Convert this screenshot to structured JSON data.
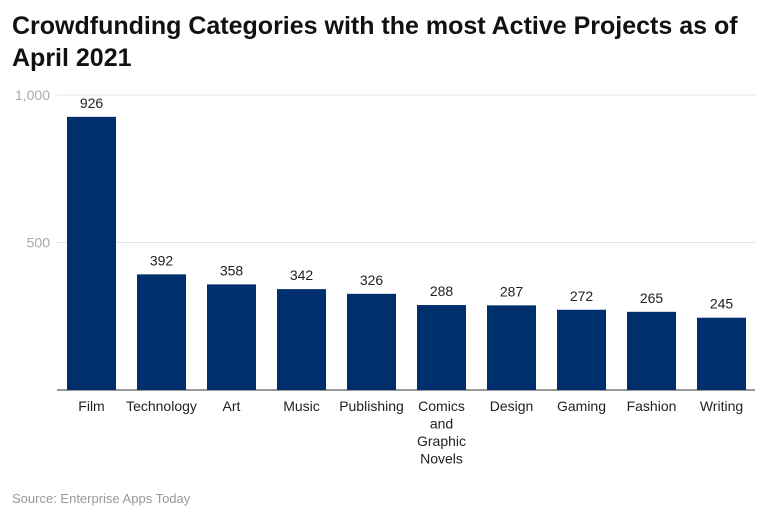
{
  "chart_data": {
    "type": "bar",
    "title": "Crowdfunding Categories with the most Active Projects as of April 2021",
    "categories": [
      "Film",
      "Technology",
      "Art",
      "Music",
      "Publishing",
      "Comics and Graphic Novels",
      "Design",
      "Gaming",
      "Fashion",
      "Writing"
    ],
    "values": [
      926,
      392,
      358,
      342,
      326,
      288,
      287,
      272,
      265,
      245
    ],
    "xlabel": "",
    "ylabel": "",
    "ylim": [
      0,
      1000
    ],
    "yticks": [
      {
        "value": 500,
        "label": "500"
      },
      {
        "value": 1000,
        "label": "1,000"
      }
    ],
    "grid": true,
    "bar_color": "#002f6e"
  },
  "source": "Source: Enterprise Apps Today"
}
